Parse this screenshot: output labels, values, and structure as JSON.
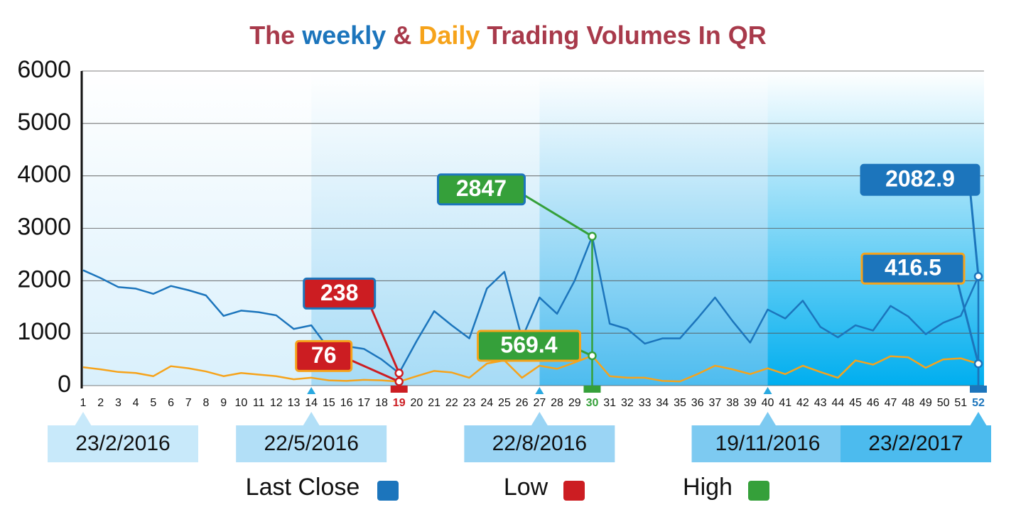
{
  "chart_data": {
    "type": "line",
    "title_parts": [
      {
        "text": "The",
        "color": "#a83a4b"
      },
      {
        "text": "weekly",
        "color": "#1c75bc"
      },
      {
        "text": "&",
        "color": "#a83a4b"
      },
      {
        "text": "Daily",
        "color": "#f6a31b"
      },
      {
        "text": "Trading Volumes In QR",
        "color": "#a83a4b"
      }
    ],
    "x": [
      1,
      2,
      3,
      4,
      5,
      6,
      7,
      8,
      9,
      10,
      11,
      12,
      13,
      14,
      15,
      16,
      17,
      18,
      19,
      20,
      21,
      22,
      23,
      24,
      25,
      26,
      27,
      28,
      29,
      30,
      31,
      32,
      33,
      34,
      35,
      36,
      37,
      38,
      39,
      40,
      41,
      42,
      43,
      44,
      45,
      46,
      47,
      48,
      49,
      50,
      51,
      52
    ],
    "xlim": [
      1,
      52
    ],
    "ylim": [
      0,
      6000
    ],
    "yticks": [
      0,
      1000,
      2000,
      3000,
      4000,
      5000,
      6000
    ],
    "grid": true,
    "series": [
      {
        "name": "weekly",
        "color": "#1c75bc",
        "values": [
          2200,
          2050,
          1880,
          1850,
          1750,
          1900,
          1820,
          1720,
          1330,
          1430,
          1400,
          1340,
          1080,
          1150,
          700,
          750,
          700,
          500,
          238,
          850,
          1420,
          1150,
          900,
          1850,
          2170,
          900,
          1680,
          1370,
          2000,
          2847,
          1180,
          1080,
          800,
          900,
          900,
          1280,
          1680,
          1230,
          820,
          1450,
          1280,
          1620,
          1120,
          920,
          1150,
          1050,
          1520,
          1320,
          980,
          1200,
          1330,
          2082.9
        ],
        "value_labels": [
          null,
          null,
          null,
          null,
          null,
          null,
          null,
          null,
          null,
          null,
          null,
          null,
          null,
          null,
          null,
          null,
          null,
          null,
          "238",
          null,
          null,
          null,
          null,
          null,
          null,
          null,
          null,
          null,
          null,
          "2847",
          null,
          null,
          null,
          null,
          null,
          null,
          null,
          null,
          null,
          null,
          null,
          null,
          null,
          null,
          null,
          null,
          null,
          null,
          null,
          null,
          null,
          "2082.9"
        ]
      },
      {
        "name": "daily",
        "color": "#f6a31b",
        "values": [
          350,
          310,
          260,
          240,
          180,
          370,
          330,
          270,
          180,
          240,
          210,
          180,
          120,
          150,
          100,
          90,
          110,
          100,
          76,
          180,
          280,
          250,
          150,
          420,
          480,
          150,
          380,
          320,
          440,
          569.4,
          180,
          150,
          150,
          90,
          80,
          220,
          380,
          310,
          220,
          330,
          220,
          380,
          260,
          150,
          480,
          400,
          560,
          540,
          340,
          500,
          520,
          416.5
        ],
        "value_labels": [
          null,
          null,
          null,
          null,
          null,
          null,
          null,
          null,
          null,
          null,
          null,
          null,
          null,
          null,
          null,
          null,
          null,
          null,
          "76",
          null,
          null,
          null,
          null,
          null,
          null,
          null,
          null,
          null,
          null,
          "569.4",
          null,
          null,
          null,
          null,
          null,
          null,
          null,
          null,
          null,
          null,
          null,
          null,
          null,
          null,
          null,
          null,
          null,
          null,
          null,
          null,
          null,
          "416.5"
        ]
      }
    ],
    "date_markers": [
      {
        "x": 1,
        "label": "23/2/2016"
      },
      {
        "x": 14,
        "label": "22/5/2016"
      },
      {
        "x": 27,
        "label": "22/8/2016"
      },
      {
        "x": 40,
        "label": "19/11/2016"
      },
      {
        "x": 52,
        "label": "23/2/2017"
      }
    ],
    "legend": [
      {
        "name": "Last Close",
        "color": "#1c75bc"
      },
      {
        "name": "Low",
        "color": "#cc1d22"
      },
      {
        "name": "High",
        "color": "#35a03a"
      }
    ]
  }
}
